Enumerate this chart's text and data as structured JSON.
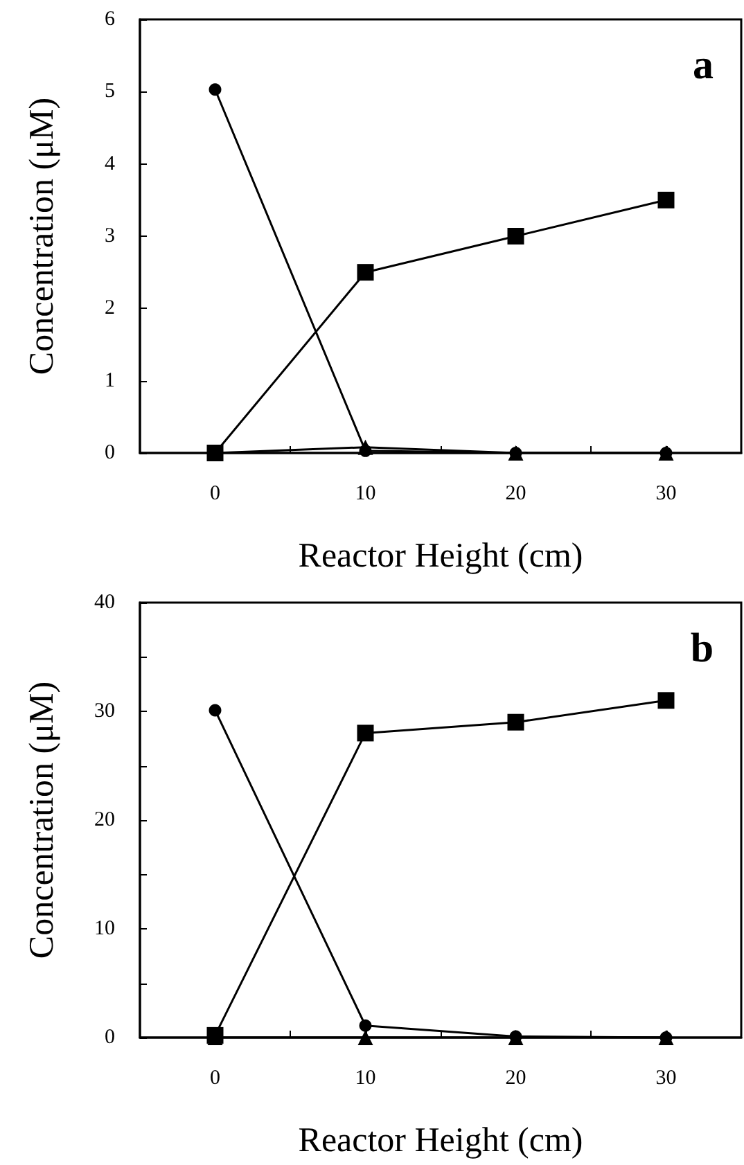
{
  "chart_data": [
    {
      "type": "line",
      "xlabel": "Reactor Height (cm)",
      "ylabel": "Concentration (μM)",
      "annotations": [
        "a"
      ],
      "x": [
        0,
        10,
        20,
        30
      ],
      "series": [
        {
          "color": "#000000",
          "marker": "circle",
          "values": [
            5.03,
            0.03,
            0,
            0
          ]
        },
        {
          "color": "#000000",
          "marker": "square",
          "values": [
            0,
            2.5,
            3.0,
            3.5
          ]
        },
        {
          "color": "#000000",
          "marker": "triangle",
          "values": [
            0,
            0.08,
            0,
            0
          ]
        }
      ],
      "xlim": [
        -5,
        35
      ],
      "xticks": [
        0,
        {
          "value": 5,
          "label": null
        },
        10,
        {
          "value": 15,
          "label": null
        },
        20,
        {
          "value": 25,
          "label": null
        },
        30
      ],
      "ylim": [
        0,
        6
      ],
      "yticks": [
        0,
        1,
        2,
        3,
        4,
        5,
        6
      ],
      "line_style": "solid"
    },
    {
      "type": "line",
      "xlabel": "Reactor Height (cm)",
      "ylabel": "Concentration (μM)",
      "annotations": [
        "b"
      ],
      "x": [
        0,
        10,
        20,
        30
      ],
      "series": [
        {
          "color": "#000000",
          "marker": "circle",
          "values": [
            30.1,
            1.1,
            0.1,
            0
          ]
        },
        {
          "color": "#000000",
          "marker": "square",
          "values": [
            0.2,
            28,
            29,
            31
          ]
        },
        {
          "color": "#000000",
          "marker": "triangle",
          "values": [
            0,
            0,
            0,
            0
          ]
        }
      ],
      "xlim": [
        -5,
        35
      ],
      "xticks": [
        0,
        {
          "value": 5,
          "label": null
        },
        10,
        {
          "value": 15,
          "label": null
        },
        20,
        {
          "value": 25,
          "label": null
        },
        30
      ],
      "ylim": [
        0,
        40
      ],
      "yticks": [
        0,
        {
          "value": 5,
          "label": null
        },
        10,
        {
          "value": 15,
          "label": null
        },
        20,
        {
          "value": 25,
          "label": null
        },
        30,
        {
          "value": 35,
          "label": null
        },
        40
      ],
      "line_style": "solid"
    }
  ]
}
